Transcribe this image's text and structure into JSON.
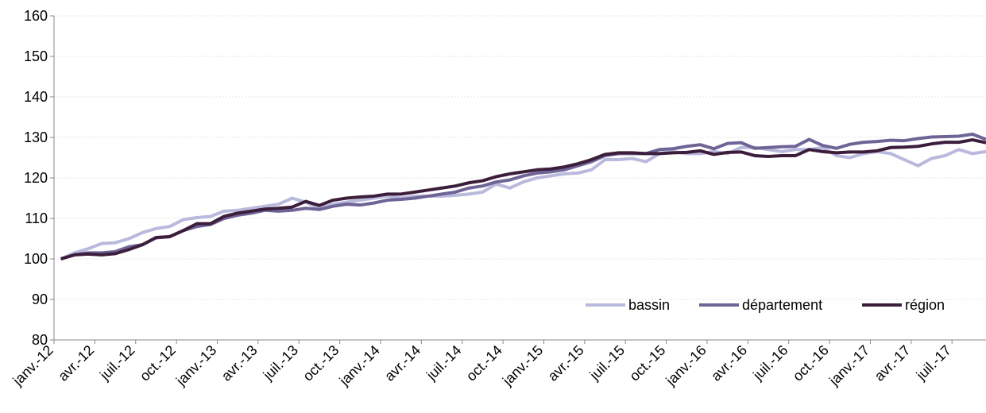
{
  "chart_data": {
    "type": "line",
    "categories": [
      "janv.-12",
      null,
      null,
      "avr.-12",
      null,
      null,
      "juil.-12",
      null,
      null,
      "oct.-12",
      null,
      null,
      "janv.-13",
      null,
      null,
      "avr.-13",
      null,
      null,
      "juil.-13",
      null,
      null,
      "oct.-13",
      null,
      null,
      "janv.-14",
      null,
      null,
      "avr.-14",
      null,
      null,
      "juil.-14",
      null,
      null,
      "oct.-14",
      null,
      null,
      "janv.-15",
      null,
      null,
      "avr.-15",
      null,
      null,
      "juil.-15",
      null,
      null,
      "oct.-15",
      null,
      null,
      "janv.-16",
      null,
      null,
      "avr.-16",
      null,
      null,
      "juil.-16",
      null,
      null,
      "oct.-16",
      null,
      null,
      "janv.-17",
      null,
      null,
      "avr.-17",
      null,
      null,
      "juil.-17",
      null,
      null
    ],
    "series": [
      {
        "name": "bassin",
        "color": "#b9b9dd",
        "values": [
          100,
          101.5,
          102.5,
          103.8,
          104,
          105,
          106.5,
          107.5,
          108,
          109.7,
          110.2,
          110.5,
          111.8,
          112,
          112.5,
          113,
          113.5,
          115,
          114,
          112.5,
          113.5,
          114,
          114.5,
          115,
          115.5,
          115,
          115.5,
          115.5,
          115.5,
          115.7,
          116,
          116.5,
          118.5,
          117.5,
          119,
          120,
          120.5,
          121,
          121.2,
          122,
          124.5,
          124.5,
          124.8,
          124,
          126,
          126.5,
          126,
          126,
          126.5,
          126,
          127.5,
          127.5,
          127,
          126.5,
          127,
          127,
          127.5,
          125.5,
          125,
          126,
          126.5,
          126,
          124.5,
          123,
          124.8,
          125.5,
          127,
          126,
          126.5
        ]
      },
      {
        "name": "département",
        "color": "#6e6496",
        "values": [
          100,
          101,
          101.5,
          101.5,
          101.8,
          103,
          103.5,
          105.2,
          105.5,
          107,
          108,
          108.5,
          110,
          110.8,
          111.3,
          112,
          111.8,
          112,
          112.5,
          112.2,
          113,
          113.5,
          113.3,
          113.8,
          114.5,
          114.7,
          115,
          115.5,
          116,
          116.5,
          117.5,
          118,
          119,
          119.5,
          120.5,
          121.2,
          121.5,
          122,
          123,
          124,
          125.5,
          126,
          126,
          126,
          127,
          127.2,
          127.8,
          128.2,
          127.2,
          128.5,
          128.7,
          127.3,
          127.5,
          127.7,
          127.8,
          129.5,
          128,
          127.3,
          128.3,
          128.8,
          129,
          129.3,
          129.2,
          129.7,
          130.1,
          130.2,
          130.3,
          130.8,
          129.5
        ]
      },
      {
        "name": "région",
        "color": "#3c1e3c",
        "values": [
          100,
          101,
          101.2,
          101,
          101.3,
          102.3,
          103.5,
          105.3,
          105.5,
          107,
          108.7,
          108.7,
          110.5,
          111.3,
          111.8,
          112.3,
          112.5,
          112.8,
          114.2,
          113.2,
          114.5,
          115,
          115.3,
          115.5,
          116,
          116,
          116.5,
          117,
          117.5,
          118,
          118.8,
          119.3,
          120.3,
          121,
          121.5,
          122,
          122.2,
          122.7,
          123.5,
          124.5,
          125.8,
          126.2,
          126.2,
          126,
          126,
          126.2,
          126.3,
          126.7,
          125.8,
          126.3,
          126.4,
          125.5,
          125.3,
          125.5,
          125.5,
          127,
          126.5,
          126.2,
          126.4,
          126.4,
          126.7,
          127.5,
          127.6,
          127.8,
          128.4,
          128.8,
          128.8,
          129.4,
          128.7
        ]
      }
    ],
    "ylim": [
      80,
      160
    ],
    "yticks": [
      80,
      90,
      100,
      110,
      120,
      130,
      140,
      150,
      160
    ],
    "grid": true,
    "legend": "bottom-right"
  }
}
